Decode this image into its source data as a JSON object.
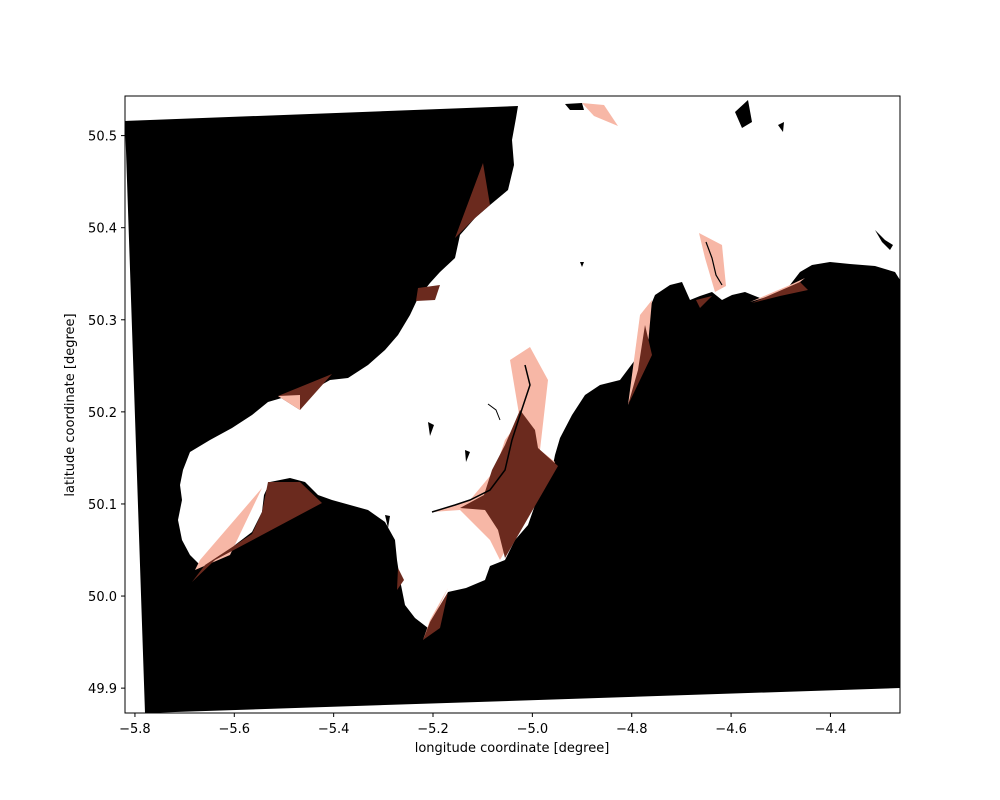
{
  "chart_data": {
    "type": "heatmap",
    "title": "",
    "xlabel": "longitude coordinate [degree]",
    "ylabel": "latitude coordinate [degree]",
    "xlim": [
      -5.82,
      -4.26
    ],
    "ylim": [
      49.873,
      50.543
    ],
    "x_ticks": [
      -5.8,
      -5.6,
      -5.4,
      -5.2,
      -5.0,
      -4.8,
      -4.6,
      -4.4
    ],
    "x_tick_labels": [
      "−5.8",
      "−5.6",
      "−5.4",
      "−5.2",
      "−5.0",
      "−4.8",
      "−4.6",
      "−4.4"
    ],
    "y_ticks": [
      49.9,
      50.0,
      50.1,
      50.2,
      50.3,
      50.4,
      50.5
    ],
    "y_tick_labels": [
      "49.9",
      "50.0",
      "50.1",
      "50.2",
      "50.3",
      "50.4",
      "50.5"
    ],
    "grid": false,
    "legend": null,
    "colors": {
      "sea_mask": "#000000",
      "land": "#ffffff",
      "intertidal_dark": "#6b2a1e",
      "intertidal_light": "#f7b7a6"
    }
  }
}
